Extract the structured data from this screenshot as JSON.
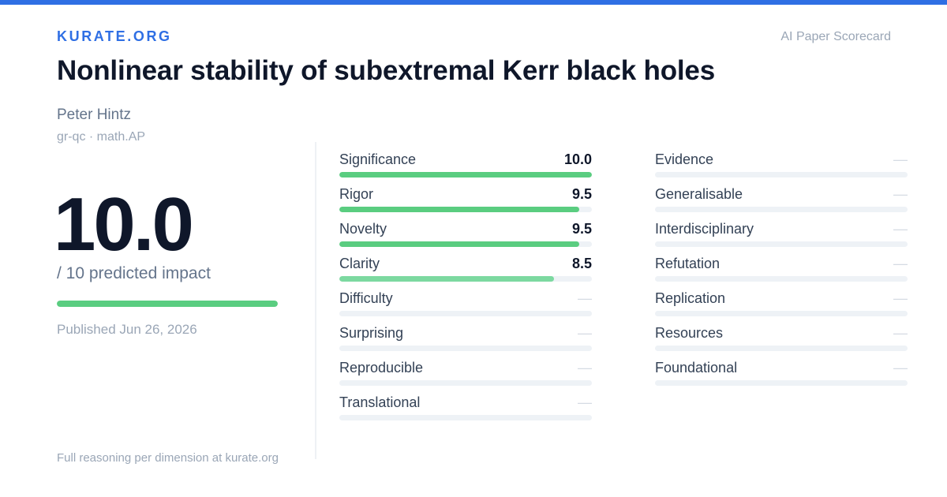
{
  "header": {
    "brand": "KURATE.ORG",
    "scorecard_label": "AI Paper Scorecard",
    "accent_color": "#2f6fe4"
  },
  "paper": {
    "title": "Nonlinear stability of subextremal Kerr black holes",
    "author": "Peter Hintz",
    "categories": "gr-qc · math.AP",
    "impact_score": "10.0",
    "impact_label": "/ 10 predicted impact",
    "impact_fraction": 1.0,
    "published": "Published Jun 26, 2026",
    "footer_note": "Full reasoning per dimension at kurate.org"
  },
  "metrics_left": [
    {
      "label": "Significance",
      "value": "10.0",
      "fraction": 1.0,
      "color": "#5acd80"
    },
    {
      "label": "Rigor",
      "value": "9.5",
      "fraction": 0.95,
      "color": "#5acd80"
    },
    {
      "label": "Novelty",
      "value": "9.5",
      "fraction": 0.95,
      "color": "#5acd80"
    },
    {
      "label": "Clarity",
      "value": "8.5",
      "fraction": 0.85,
      "color": "#7cd9a0"
    },
    {
      "label": "Difficulty",
      "value": "—",
      "fraction": 0,
      "color": "#5acd80"
    },
    {
      "label": "Surprising",
      "value": "—",
      "fraction": 0,
      "color": "#5acd80"
    },
    {
      "label": "Reproducible",
      "value": "—",
      "fraction": 0,
      "color": "#5acd80"
    },
    {
      "label": "Translational",
      "value": "—",
      "fraction": 0,
      "color": "#5acd80"
    }
  ],
  "metrics_right": [
    {
      "label": "Evidence",
      "value": "—",
      "fraction": 0,
      "color": "#5acd80"
    },
    {
      "label": "Generalisable",
      "value": "—",
      "fraction": 0,
      "color": "#5acd80"
    },
    {
      "label": "Interdisciplinary",
      "value": "—",
      "fraction": 0,
      "color": "#5acd80"
    },
    {
      "label": "Refutation",
      "value": "—",
      "fraction": 0,
      "color": "#5acd80"
    },
    {
      "label": "Replication",
      "value": "—",
      "fraction": 0,
      "color": "#5acd80"
    },
    {
      "label": "Resources",
      "value": "—",
      "fraction": 0,
      "color": "#5acd80"
    },
    {
      "label": "Foundational",
      "value": "—",
      "fraction": 0,
      "color": "#5acd80"
    }
  ]
}
